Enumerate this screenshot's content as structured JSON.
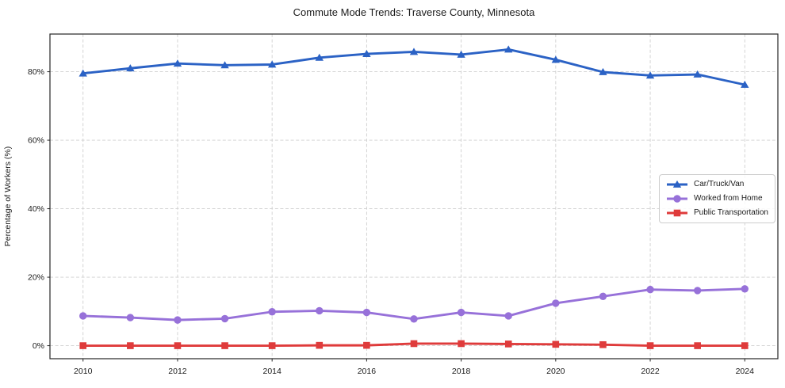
{
  "title": "Commute Mode Trends: Traverse County, Minnesota",
  "chart_data": {
    "type": "line",
    "title": "Commute Mode Trends: Traverse County, Minnesota",
    "xlabel": "",
    "ylabel": "Percentage of Workers (%)",
    "x": [
      2010,
      2011,
      2012,
      2013,
      2014,
      2015,
      2016,
      2017,
      2018,
      2019,
      2020,
      2021,
      2022,
      2023,
      2024
    ],
    "xticks": [
      2010,
      2012,
      2014,
      2016,
      2018,
      2020,
      2022,
      2024
    ],
    "yticks": [
      0,
      20,
      40,
      60,
      80
    ],
    "ytick_suffix": "%",
    "xlim": [
      2009.3,
      2024.7
    ],
    "ylim": [
      -3.8,
      91
    ],
    "grid": true,
    "grid_style": "dashed",
    "legend_position": "center right",
    "series": [
      {
        "name": "Car/Truck/Van",
        "color": "#2b62c5",
        "marker": "triangle",
        "values": [
          79.5,
          81.0,
          82.4,
          81.9,
          82.1,
          84.1,
          85.2,
          85.8,
          85.0,
          86.5,
          83.5,
          79.9,
          78.9,
          79.2,
          76.2
        ]
      },
      {
        "name": "Worked from Home",
        "color": "#9771d9",
        "marker": "circle",
        "values": [
          8.7,
          8.2,
          7.5,
          7.9,
          9.9,
          10.2,
          9.7,
          7.8,
          9.7,
          8.7,
          12.4,
          14.4,
          16.4,
          16.1,
          16.6
        ]
      },
      {
        "name": "Public Transportation",
        "color": "#df3b3b",
        "marker": "square",
        "values": [
          0.0,
          0.0,
          0.0,
          0.0,
          0.0,
          0.1,
          0.1,
          0.6,
          0.6,
          0.5,
          0.4,
          0.3,
          0.0,
          0.0,
          0.0
        ]
      }
    ]
  }
}
